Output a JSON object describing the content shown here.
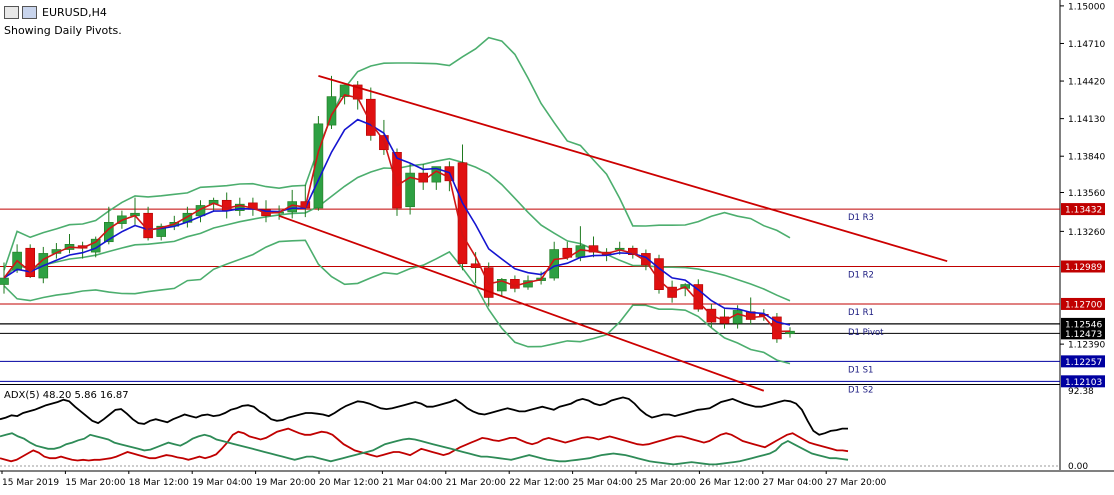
{
  "header": {
    "symbol": "EURUSD,H4",
    "subtitle": "Showing Daily Pivots."
  },
  "chart_data": {
    "type": "candlestick",
    "price_axis": {
      "ylim": [
        1.1209,
        1.1503
      ],
      "ticks": [
        "1.15000",
        "1.14710",
        "1.14420",
        "1.14130",
        "1.13840",
        "1.13560",
        "1.13260",
        "1.12390"
      ]
    },
    "time_axis": {
      "labels": [
        "15 Mar 2019",
        "15 Mar 20:00",
        "18 Mar 12:00",
        "19 Mar 04:00",
        "19 Mar 20:00",
        "20 Mar 12:00",
        "21 Mar 04:00",
        "21 Mar 20:00",
        "22 Mar 12:00",
        "25 Mar 04:00",
        "25 Mar 20:00",
        "26 Mar 12:00",
        "27 Mar 04:00",
        "27 Mar 20:00"
      ]
    },
    "pivots": [
      {
        "name": "D1 R3",
        "price": 1.13432,
        "price_label": "1.13432",
        "color": "#c00000"
      },
      {
        "name": "D1 R2",
        "price": 1.12989,
        "price_label": "1.12989",
        "color": "#c00000"
      },
      {
        "name": "D1 R1",
        "price": 1.127,
        "price_label": "1.12700",
        "color": "#c00000"
      },
      {
        "name": "D1 Pivot",
        "price": 1.12546,
        "price_label": "1.12546",
        "color": "#000000"
      },
      {
        "name": "D1 S1",
        "price": 1.12257,
        "price_label": "1.12257",
        "color": "#0000a0"
      },
      {
        "name": "D1 S2",
        "price": 1.12103,
        "price_label": "1.12103",
        "color": "#0000a0"
      }
    ],
    "current_price_label": "1.12473",
    "current_price": 1.12473,
    "candles": [
      [
        1.1285,
        1.1302,
        1.129,
        1.1278
      ],
      [
        1.1296,
        1.1316,
        1.131,
        1.1294
      ],
      [
        1.1313,
        1.1316,
        1.1291,
        1.129
      ],
      [
        1.129,
        1.1314,
        1.1309,
        1.1286
      ],
      [
        1.1309,
        1.1317,
        1.1312,
        1.1305
      ],
      [
        1.1312,
        1.1324,
        1.1316,
        1.1309
      ],
      [
        1.1315,
        1.1318,
        1.1313,
        1.1305
      ],
      [
        1.131,
        1.1322,
        1.132,
        1.1306
      ],
      [
        1.1318,
        1.1345,
        1.1333,
        1.1316
      ],
      [
        1.1332,
        1.1342,
        1.1338,
        1.1328
      ],
      [
        1.1338,
        1.1352,
        1.134,
        1.1331
      ],
      [
        1.134,
        1.1345,
        1.1321,
        1.1319
      ],
      [
        1.1322,
        1.1332,
        1.133,
        1.1319
      ],
      [
        1.133,
        1.1338,
        1.1333,
        1.1327
      ],
      [
        1.1333,
        1.1345,
        1.134,
        1.1329
      ],
      [
        1.1338,
        1.135,
        1.1346,
        1.1333
      ],
      [
        1.1347,
        1.1352,
        1.135,
        1.1341
      ],
      [
        1.135,
        1.1356,
        1.1342,
        1.1336
      ],
      [
        1.1342,
        1.1352,
        1.1347,
        1.1338
      ],
      [
        1.1348,
        1.1352,
        1.1343,
        1.1338
      ],
      [
        1.1343,
        1.135,
        1.1338,
        1.1333
      ],
      [
        1.134,
        1.1346,
        1.1341,
        1.1335
      ],
      [
        1.1341,
        1.1358,
        1.1349,
        1.1336
      ],
      [
        1.1349,
        1.1362,
        1.1344,
        1.1337
      ],
      [
        1.1344,
        1.1415,
        1.1409,
        1.1342
      ],
      [
        1.1408,
        1.1446,
        1.143,
        1.1405
      ],
      [
        1.143,
        1.1439,
        1.1439,
        1.1424
      ],
      [
        1.1439,
        1.1442,
        1.1428,
        1.142
      ],
      [
        1.1428,
        1.1437,
        1.14,
        1.1396
      ],
      [
        1.14,
        1.1412,
        1.1389,
        1.1385
      ],
      [
        1.1387,
        1.139,
        1.1344,
        1.1338
      ],
      [
        1.1345,
        1.1378,
        1.1371,
        1.1339
      ],
      [
        1.1371,
        1.1378,
        1.1364,
        1.1358
      ],
      [
        1.1364,
        1.1375,
        1.1376,
        1.1358
      ],
      [
        1.1376,
        1.138,
        1.1365,
        1.1357
      ],
      [
        1.1379,
        1.1393,
        1.1301,
        1.1296
      ],
      [
        1.1301,
        1.131,
        1.1298,
        1.1286
      ],
      [
        1.1298,
        1.1302,
        1.1275,
        1.1268
      ],
      [
        1.128,
        1.129,
        1.1289,
        1.1276
      ],
      [
        1.1289,
        1.1292,
        1.1282,
        1.1279
      ],
      [
        1.1283,
        1.1292,
        1.1288,
        1.1281
      ],
      [
        1.1288,
        1.1295,
        1.129,
        1.1285
      ],
      [
        1.129,
        1.1318,
        1.1312,
        1.1288
      ],
      [
        1.1313,
        1.1318,
        1.1306,
        1.1304
      ],
      [
        1.1306,
        1.133,
        1.1315,
        1.1303
      ],
      [
        1.1315,
        1.1322,
        1.131,
        1.1306
      ],
      [
        1.131,
        1.1313,
        1.1308,
        1.1303
      ],
      [
        1.1312,
        1.1318,
        1.1313,
        1.1308
      ],
      [
        1.1313,
        1.1315,
        1.1308,
        1.1305
      ],
      [
        1.1309,
        1.1312,
        1.13,
        1.1296
      ],
      [
        1.1305,
        1.1308,
        1.1281,
        1.1278
      ],
      [
        1.1283,
        1.1288,
        1.1275,
        1.1271
      ],
      [
        1.1282,
        1.1286,
        1.1285,
        1.1276
      ],
      [
        1.1285,
        1.1289,
        1.1266,
        1.1264
      ],
      [
        1.1266,
        1.127,
        1.1256,
        1.1252
      ],
      [
        1.126,
        1.1266,
        1.1255,
        1.1251
      ],
      [
        1.1255,
        1.1269,
        1.1265,
        1.1251
      ],
      [
        1.1264,
        1.1275,
        1.1258,
        1.1254
      ],
      [
        1.1262,
        1.1266,
        1.1261,
        1.1257
      ],
      [
        1.126,
        1.1263,
        1.1243,
        1.124
      ],
      [
        1.1247,
        1.1252,
        1.1249,
        1.1244
      ]
    ],
    "indicator": {
      "name": "ADX(5)",
      "label": "ADX(5) 48.20 5.86 16.87",
      "ylim": [
        0,
        100
      ],
      "tick_top": "92.38",
      "tick_bottom": "0.00",
      "series": [
        {
          "key": "adx",
          "color": "#000000",
          "values": [
            60,
            62,
            65,
            64,
            68,
            70,
            72,
            75,
            78,
            80,
            82,
            85,
            83,
            76,
            70,
            64,
            58,
            55,
            60,
            66,
            72,
            73,
            67,
            60,
            55,
            54,
            58,
            60,
            58,
            56,
            60,
            63,
            66,
            64,
            62,
            65,
            66,
            64,
            65,
            68,
            72,
            74,
            77,
            78,
            76,
            70,
            66,
            60,
            58,
            59,
            62,
            64,
            66,
            68,
            68,
            67,
            66,
            64,
            68,
            73,
            77,
            80,
            83,
            82,
            80,
            77,
            74,
            73,
            74,
            76,
            78,
            80,
            82,
            80,
            76,
            76,
            78,
            80,
            82,
            85,
            80,
            74,
            70,
            67,
            66,
            68,
            70,
            72,
            74,
            72,
            70,
            70,
            72,
            74,
            76,
            74,
            72,
            76,
            78,
            80,
            84,
            86,
            84,
            80,
            78,
            80,
            84,
            86,
            88,
            86,
            80,
            72,
            66,
            62,
            64,
            66,
            66,
            64,
            66,
            68,
            70,
            72,
            73,
            74,
            78,
            82,
            84,
            86,
            83,
            80,
            78,
            76,
            76,
            78,
            80,
            82,
            84,
            83,
            80,
            72,
            58,
            45,
            40,
            42,
            45,
            46,
            48,
            48
          ]
        },
        {
          "key": "plus_di",
          "color": "#c00000",
          "values": [
            10,
            8,
            6,
            8,
            12,
            16,
            20,
            17,
            12,
            10,
            10,
            12,
            10,
            8,
            7,
            8,
            7,
            8,
            8,
            9,
            10,
            12,
            15,
            18,
            16,
            14,
            12,
            10,
            10,
            12,
            14,
            13,
            11,
            10,
            8,
            10,
            12,
            10,
            12,
            15,
            22,
            30,
            40,
            44,
            42,
            38,
            36,
            34,
            36,
            40,
            44,
            46,
            48,
            45,
            42,
            40,
            40,
            42,
            44,
            43,
            40,
            34,
            28,
            24,
            20,
            18,
            16,
            14,
            12,
            14,
            16,
            18,
            18,
            16,
            14,
            18,
            22,
            20,
            18,
            16,
            14,
            16,
            20,
            24,
            27,
            30,
            33,
            36,
            35,
            33,
            32,
            34,
            36,
            36,
            33,
            30,
            28,
            30,
            34,
            36,
            34,
            32,
            30,
            32,
            34,
            36,
            37,
            36,
            34,
            36,
            38,
            36,
            34,
            32,
            30,
            28,
            27,
            28,
            30,
            32,
            34,
            36,
            38,
            38,
            36,
            34,
            32,
            30,
            32,
            36,
            40,
            42,
            40,
            36,
            32,
            30,
            28,
            26,
            24,
            28,
            32,
            36,
            40,
            42,
            38,
            34,
            30,
            28,
            26,
            24,
            22,
            20,
            20,
            19
          ]
        },
        {
          "key": "minus_di",
          "color": "#2e8b57",
          "values": [
            38,
            40,
            42,
            38,
            35,
            30,
            26,
            24,
            22,
            22,
            24,
            28,
            30,
            33,
            35,
            40,
            38,
            36,
            34,
            30,
            28,
            26,
            24,
            22,
            20,
            21,
            24,
            27,
            30,
            28,
            26,
            30,
            35,
            38,
            40,
            38,
            34,
            32,
            30,
            28,
            26,
            24,
            22,
            20,
            18,
            16,
            14,
            12,
            10,
            8,
            10,
            12,
            12,
            10,
            8,
            6,
            8,
            10,
            12,
            14,
            16,
            18,
            20,
            24,
            28,
            30,
            32,
            34,
            35,
            34,
            32,
            30,
            28,
            26,
            24,
            22,
            20,
            18,
            16,
            14,
            12,
            12,
            11,
            10,
            9,
            8,
            10,
            12,
            14,
            12,
            10,
            8,
            7,
            6,
            6,
            7,
            8,
            9,
            10,
            12,
            14,
            15,
            16,
            15,
            14,
            12,
            10,
            8,
            6,
            5,
            4,
            3,
            2,
            3,
            4,
            5,
            4,
            3,
            2,
            2,
            3,
            4,
            5,
            6,
            8,
            10,
            12,
            14,
            16,
            20,
            28,
            32,
            28,
            24,
            20,
            16,
            14,
            12,
            10,
            10,
            9,
            8
          ]
        }
      ]
    },
    "trend_lines": [
      {
        "from": [
          24,
          1.1446
        ],
        "to": [
          72,
          1.1303
        ],
        "color": "#cc0000"
      },
      {
        "from": [
          21,
          1.1338
        ],
        "to": [
          58,
          1.1203
        ],
        "color": "#cc0000"
      }
    ]
  }
}
